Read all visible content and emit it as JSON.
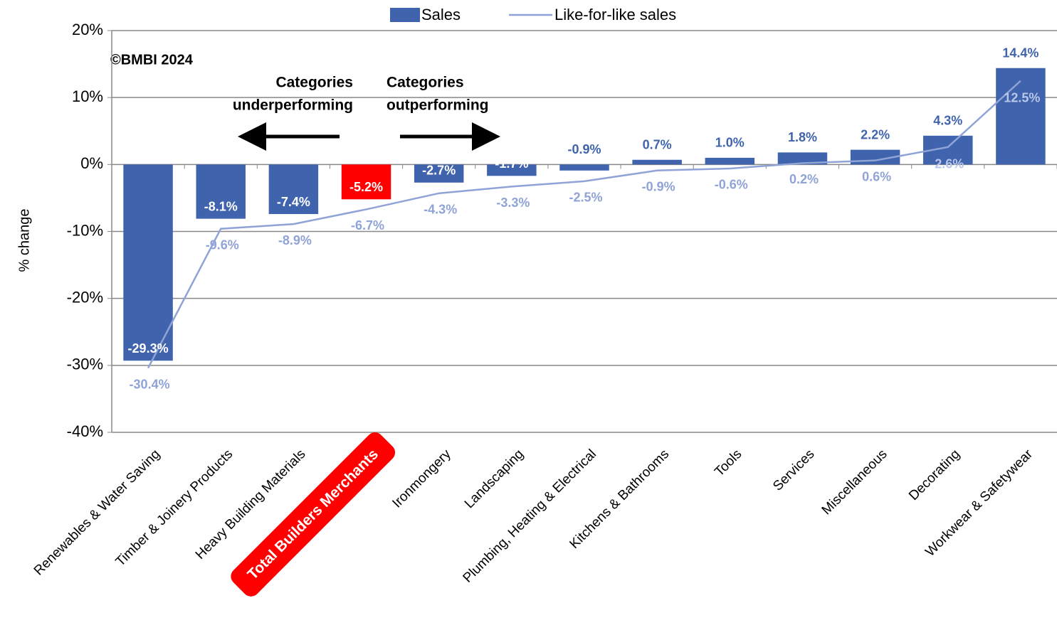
{
  "chart_data": {
    "type": "bar",
    "ylabel": "% change",
    "categories": [
      "Renewables & Water Saving",
      "Timber & Joinery Products",
      "Heavy Building Materials",
      "Total Builders Merchants",
      "Ironmongery",
      "Landscaping",
      "Plumbing, Heating & Electrical",
      "Kitchens & Bathrooms",
      "Tools",
      "Services",
      "Miscellaneous",
      "Decorating",
      "Workwear & Safetywear"
    ],
    "series": [
      {
        "name": "Sales",
        "type": "bar",
        "color": "#3f63ad",
        "values": [
          -29.3,
          -8.1,
          -7.4,
          -5.2,
          -2.7,
          -1.7,
          -0.9,
          0.7,
          1.0,
          1.8,
          2.2,
          4.3,
          14.4
        ],
        "value_labels": [
          "-29.3%",
          "-8.1%",
          "-7.4%",
          "-5.2%",
          "-2.7%",
          "-1.7%",
          "-0.9%",
          "0.7%",
          "1.0%",
          "1.8%",
          "2.2%",
          "4.3%",
          "14.4%"
        ]
      },
      {
        "name": "Like-for-like sales",
        "type": "line",
        "color": "#8fa3d6",
        "values": [
          -30.4,
          -9.6,
          -8.9,
          -6.7,
          -4.3,
          -3.3,
          -2.5,
          -0.9,
          -0.6,
          0.2,
          0.6,
          2.6,
          12.5
        ],
        "value_labels": [
          "-30.4%",
          "-9.6%",
          "-8.9%",
          "-6.7%",
          "-4.3%",
          "-3.3%",
          "-2.5%",
          "-0.9%",
          "-0.6%",
          "0.2%",
          "0.6%",
          "2.6%",
          "12.5%"
        ]
      }
    ],
    "highlight": {
      "index": 3,
      "color": "#ff0000"
    },
    "ylim": [
      -40,
      20
    ],
    "yticks": [
      {
        "value": -40,
        "label": "-40%"
      },
      {
        "value": -30,
        "label": "-30%"
      },
      {
        "value": -20,
        "label": "-20%"
      },
      {
        "value": -10,
        "label": "-10%"
      },
      {
        "value": 0,
        "label": "0%"
      },
      {
        "value": 10,
        "label": "10%"
      },
      {
        "value": 20,
        "label": "20%"
      }
    ],
    "grid": true,
    "legend": "top",
    "annotations": [
      "©BMBI 2024",
      "Categories",
      "underperforming",
      "Categories",
      "outperforming"
    ]
  }
}
